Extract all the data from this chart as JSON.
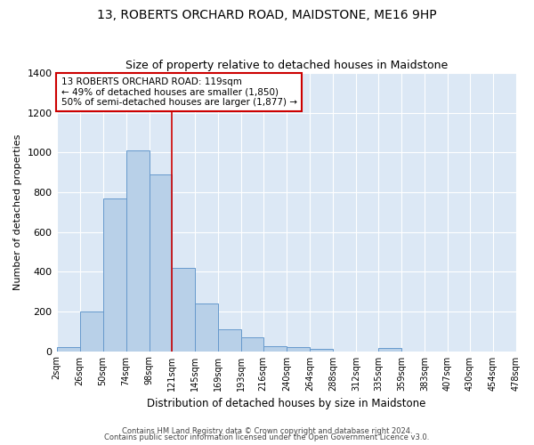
{
  "title": "13, ROBERTS ORCHARD ROAD, MAIDSTONE, ME16 9HP",
  "subtitle": "Size of property relative to detached houses in Maidstone",
  "xlabel": "Distribution of detached houses by size in Maidstone",
  "ylabel": "Number of detached properties",
  "bin_edges": [
    2,
    26,
    50,
    74,
    98,
    121,
    145,
    169,
    193,
    216,
    240,
    264,
    288,
    312,
    335,
    359,
    383,
    407,
    430,
    454,
    478
  ],
  "bin_labels": [
    "2sqm",
    "26sqm",
    "50sqm",
    "74sqm",
    "98sqm",
    "121sqm",
    "145sqm",
    "169sqm",
    "193sqm",
    "216sqm",
    "240sqm",
    "264sqm",
    "288sqm",
    "312sqm",
    "335sqm",
    "359sqm",
    "383sqm",
    "407sqm",
    "430sqm",
    "454sqm",
    "478sqm"
  ],
  "bar_heights": [
    20,
    200,
    770,
    1010,
    890,
    420,
    240,
    110,
    70,
    25,
    20,
    10,
    0,
    0,
    15,
    0,
    0,
    0,
    0,
    0
  ],
  "bar_color": "#b8d0e8",
  "bar_edgecolor": "#6699cc",
  "vline_x": 121,
  "vline_color": "#cc0000",
  "ylim": [
    0,
    1400
  ],
  "yticks": [
    0,
    200,
    400,
    600,
    800,
    1000,
    1200,
    1400
  ],
  "annotation_title": "13 ROBERTS ORCHARD ROAD: 119sqm",
  "annotation_line1": "← 49% of detached houses are smaller (1,850)",
  "annotation_line2": "50% of semi-detached houses are larger (1,877) →",
  "annotation_box_color": "#cc0000",
  "bg_color": "#dce8f5",
  "footer_line1": "Contains HM Land Registry data © Crown copyright and database right 2024.",
  "footer_line2": "Contains public sector information licensed under the Open Government Licence v3.0."
}
